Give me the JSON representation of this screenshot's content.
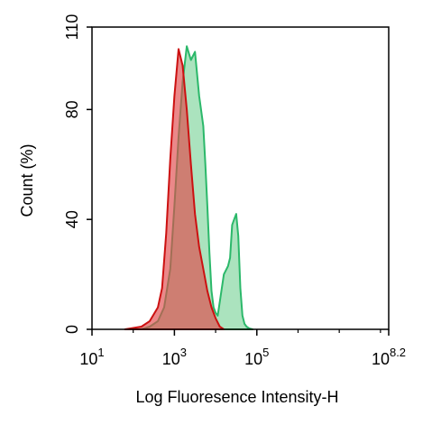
{
  "chart_data": {
    "type": "area",
    "title": "",
    "xlabel": "Log Fluoresence Intensity-H",
    "ylabel": "Count  (%)",
    "x_scale": "log10",
    "xlim": [
      1,
      8.2
    ],
    "ylim": [
      0,
      110
    ],
    "x_ticks": [
      {
        "base": "10",
        "exp": "1",
        "value": 1
      },
      {
        "base": "10",
        "exp": "3",
        "value": 3
      },
      {
        "base": "10",
        "exp": "5",
        "value": 5
      },
      {
        "base": "10",
        "exp": "8.2",
        "value": 8.2
      }
    ],
    "y_ticks": [
      {
        "label": "0",
        "value": 0
      },
      {
        "label": "40",
        "value": 40
      },
      {
        "label": "80",
        "value": 80
      },
      {
        "label": "110",
        "value": 110
      }
    ],
    "grid": false,
    "legend": "none",
    "series": [
      {
        "color": "#2bb86a",
        "fill": "#8fd9a8",
        "x": [
          2.2,
          2.4,
          2.6,
          2.75,
          2.9,
          3.0,
          3.1,
          3.2,
          3.3,
          3.4,
          3.5,
          3.6,
          3.7,
          3.75,
          3.8,
          3.85,
          3.9,
          3.95,
          4.0,
          4.05,
          4.1,
          4.2,
          4.3,
          4.35,
          4.4,
          4.45,
          4.5,
          4.55,
          4.6,
          4.65,
          4.7,
          4.75,
          4.8,
          4.85,
          4.9
        ],
        "y": [
          0,
          1,
          3,
          8,
          22,
          45,
          70,
          90,
          103,
          98,
          101,
          85,
          74,
          60,
          45,
          28,
          14,
          8,
          6,
          5,
          10,
          20,
          23,
          26,
          38,
          40,
          42,
          34,
          15,
          5,
          2,
          1,
          0.5,
          0.2,
          0
        ]
      },
      {
        "color": "#cc1111",
        "fill": "#e0484a",
        "x": [
          1.8,
          2.0,
          2.2,
          2.4,
          2.6,
          2.7,
          2.8,
          2.9,
          3.0,
          3.1,
          3.2,
          3.3,
          3.4,
          3.5,
          3.6,
          3.7,
          3.8,
          3.9,
          4.0,
          4.1,
          4.2
        ],
        "y": [
          0,
          0.5,
          1,
          3,
          8,
          15,
          35,
          62,
          85,
          102,
          96,
          80,
          60,
          42,
          30,
          22,
          14,
          8,
          4,
          1,
          0
        ]
      }
    ]
  }
}
